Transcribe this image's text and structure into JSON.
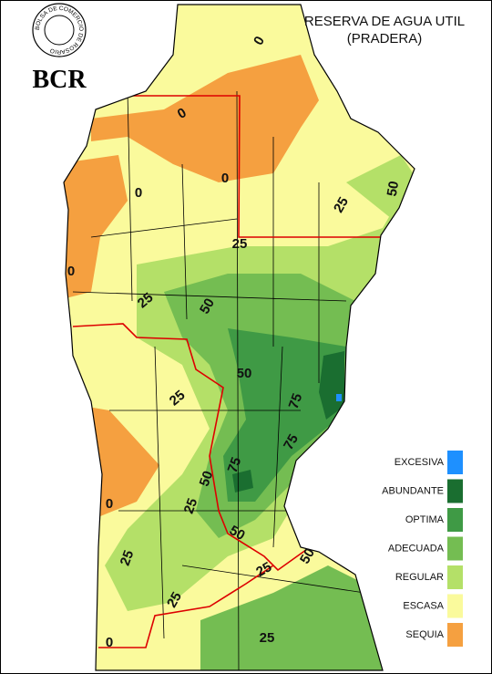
{
  "logo": {
    "ring_text": "BOLSA DE COMERCIO DE ROSARIO",
    "abbreviation": "BCR"
  },
  "title": [
    "RESERVA DE AGUA UTIL",
    "(PRADERA)"
  ],
  "legend": [
    {
      "label": "EXCESIVA",
      "color": "#1e90ff"
    },
    {
      "label": "ABUNDANTE",
      "color": "#1a6e30"
    },
    {
      "label": "OPTIMA",
      "color": "#3f9a45"
    },
    {
      "label": "ADECUADA",
      "color": "#74bd52"
    },
    {
      "label": "REGULAR",
      "color": "#b4e068"
    },
    {
      "label": "ESCASA",
      "color": "#fafa9c"
    },
    {
      "label": "SEQUIA",
      "color": "#f5a040"
    }
  ],
  "contour_labels": [
    0,
    0,
    0,
    0,
    0,
    25,
    50,
    25,
    25,
    50,
    50,
    25,
    75,
    75,
    75,
    50,
    25,
    0,
    50,
    25,
    25,
    25,
    50,
    25,
    0
  ]
}
